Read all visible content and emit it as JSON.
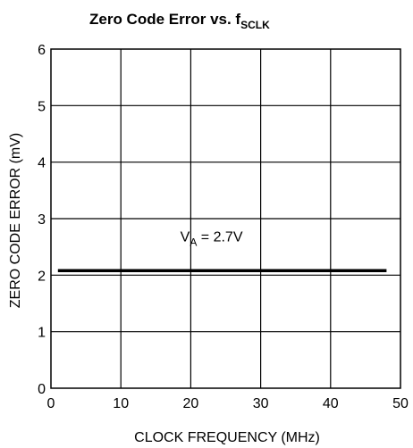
{
  "chart_data": {
    "type": "line",
    "title_main": "Zero Code Error vs. f",
    "title_sub": "SCLK",
    "xlabel": "CLOCK FREQUENCY (MHz)",
    "ylabel": "ZERO CODE ERROR (mV)",
    "xlim": [
      0,
      50
    ],
    "ylim": [
      0,
      6
    ],
    "xticks": [
      0,
      10,
      20,
      30,
      40,
      50
    ],
    "yticks": [
      0,
      1,
      2,
      3,
      4,
      5,
      6
    ],
    "grid": true,
    "series": [
      {
        "x": [
          1,
          48
        ],
        "y": [
          2.08,
          2.08
        ]
      }
    ],
    "annotation": {
      "prefix": "V",
      "subscript": "A",
      "suffix": " = 2.7V"
    }
  }
}
